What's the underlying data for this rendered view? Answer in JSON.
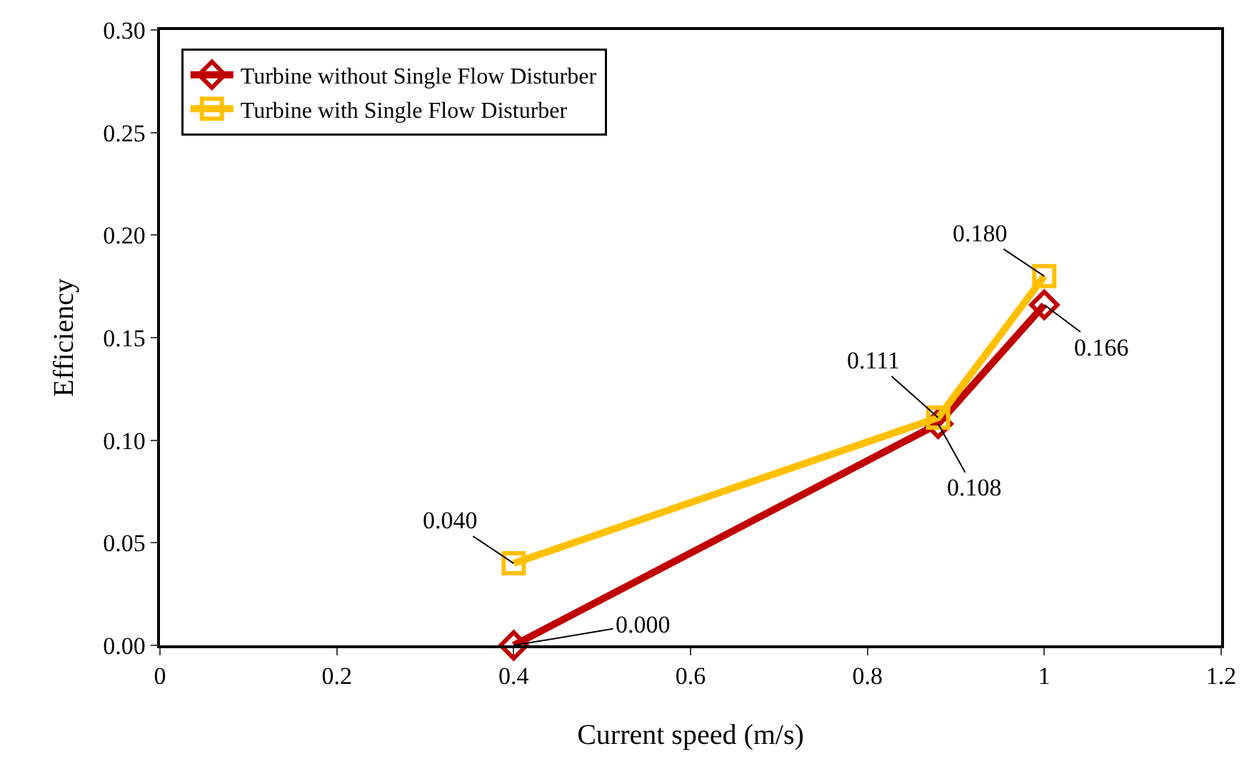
{
  "chart_data": {
    "type": "line",
    "xlabel": "Current speed (m/s)",
    "ylabel": "Efficiency",
    "x": [
      0.4,
      0.88,
      1.0
    ],
    "series": [
      {
        "name": "Turbine without Single Flow Disturber",
        "color": "#c00000",
        "values": [
          0.0,
          0.108,
          0.166
        ],
        "marker": "diamond",
        "value_labels": [
          "0.000",
          "0.108",
          "0.166"
        ]
      },
      {
        "name": "Turbine with Single Flow Disturber",
        "color": "#ffc000",
        "values": [
          0.04,
          0.111,
          0.18
        ],
        "marker": "square",
        "value_labels": [
          "0.040",
          "0.111",
          "0.180"
        ]
      }
    ],
    "xlim": [
      0,
      1.2
    ],
    "xticks": [
      0,
      0.2,
      0.4,
      0.6,
      0.8,
      1,
      1.2
    ],
    "ylim": [
      0,
      0.3
    ],
    "yticks": [
      {
        "value": 0,
        "label": "0.00"
      },
      {
        "value": 0.05,
        "label": "0.05"
      },
      {
        "value": 0.1,
        "label": "0.10"
      },
      {
        "value": 0.15,
        "label": "0.15"
      },
      {
        "value": 0.2,
        "label": "0.20"
      },
      {
        "value": 0.25,
        "label": "0.25"
      },
      {
        "value": 0.3,
        "label": "0.30"
      }
    ],
    "legend": "top left",
    "line_style": "solid"
  }
}
